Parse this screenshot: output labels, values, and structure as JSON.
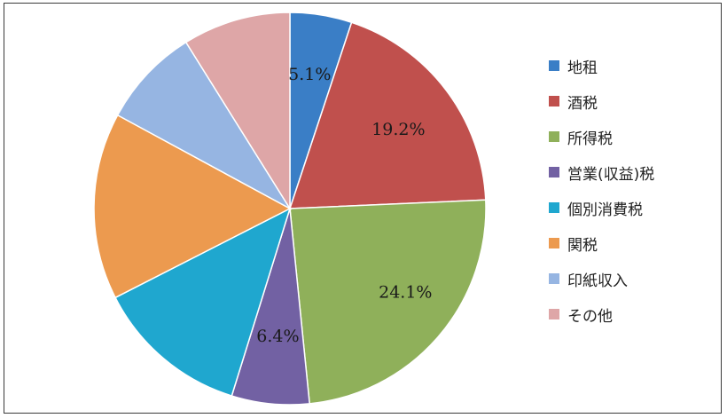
{
  "chart_data": {
    "type": "pie",
    "categories": [
      "地租",
      "酒税",
      "所得税",
      "営業(収益)税",
      "個別消費税",
      "関税",
      "印紙収入",
      "その他"
    ],
    "values": [
      5.1,
      19.2,
      24.1,
      6.4,
      12.7,
      15.4,
      8.2,
      8.9
    ],
    "labels": [
      "5.1%",
      "19.2%",
      "24.1%",
      "6.4%",
      "",
      "",
      "",
      ""
    ],
    "colors": [
      "#3a7ec6",
      "#c0504d",
      "#8fb05a",
      "#7261a3",
      "#1fa7cf",
      "#ec9a4f",
      "#96b5e2",
      "#dea6a7"
    ],
    "legend_position": "right",
    "start_angle_deg": 0,
    "direction": "clockwise"
  },
  "legend": {
    "items": [
      {
        "label": "地租",
        "color": "#3a7ec6"
      },
      {
        "label": "酒税",
        "color": "#c0504d"
      },
      {
        "label": "所得税",
        "color": "#8fb05a"
      },
      {
        "label": "営業(収益)税",
        "color": "#7261a3"
      },
      {
        "label": "個別消費税",
        "color": "#1fa7cf"
      },
      {
        "label": "関税",
        "color": "#ec9a4f"
      },
      {
        "label": "印紙収入",
        "color": "#96b5e2"
      },
      {
        "label": "その他",
        "color": "#dea6a7"
      }
    ]
  }
}
